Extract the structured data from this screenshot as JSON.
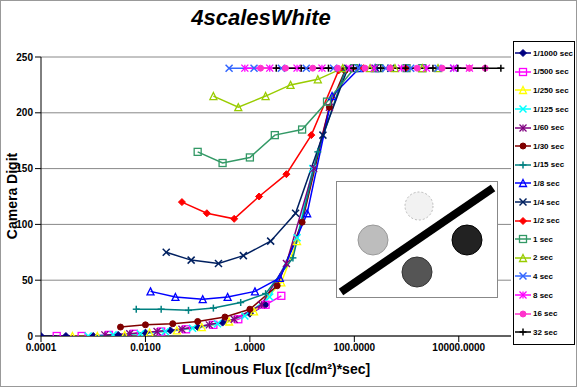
{
  "chart_data": {
    "type": "line",
    "title": "4scalesWhite",
    "x_label": "Luminous Flux [(cd/m²)*sec]",
    "y_label": "Camera Digit",
    "log": "x",
    "grid": true,
    "legend": "right",
    "xlim": [
      0.0001,
      100000
    ],
    "xticks": [
      0.0001,
      {
        "value": 0.01,
        "label": "0.0100"
      },
      {
        "value": 1,
        "label": "1.0000"
      },
      {
        "value": 100,
        "label": "100.0000"
      },
      {
        "value": 10000,
        "label": "10000.0000"
      }
    ],
    "ylim": [
      0,
      250
    ],
    "yticks": [
      0,
      50,
      100,
      150,
      200,
      250
    ],
    "series": [
      {
        "name": "1/1000 sec",
        "color": "#000080",
        "marker": "diamond",
        "x": [
          0.0001,
          0.0003,
          0.001,
          0.003,
          0.01,
          0.03,
          0.1,
          0.3,
          1,
          2
        ],
        "values": [
          0,
          0,
          0,
          1,
          3,
          5,
          8,
          12,
          20,
          28
        ]
      },
      {
        "name": "1/500 sec",
        "color": "#ff00ff",
        "marker": "square",
        "x": [
          0.0002,
          0.0006,
          0.002,
          0.006,
          0.02,
          0.06,
          0.2,
          0.6,
          2,
          4
        ],
        "values": [
          0,
          0,
          1,
          2,
          4,
          6,
          10,
          15,
          28,
          36
        ]
      },
      {
        "name": "1/250 sec",
        "color": "#ffff00",
        "marker": "triangle",
        "x": [
          0.0004,
          0.0012,
          0.004,
          0.012,
          0.04,
          0.12,
          0.4,
          1.2,
          4,
          8
        ],
        "values": [
          0,
          0,
          1,
          3,
          5,
          8,
          13,
          22,
          48,
          85
        ]
      },
      {
        "name": "1/125 sec",
        "color": "#00ffff",
        "marker": "x",
        "x": [
          0.0008,
          0.0024,
          0.008,
          0.024,
          0.08,
          0.24,
          0.8,
          2.4,
          8,
          16
        ],
        "values": [
          0,
          1,
          2,
          4,
          7,
          11,
          18,
          35,
          88,
          150
        ]
      },
      {
        "name": "1/60 sec",
        "color": "#800080",
        "marker": "star",
        "x": [
          0.00167,
          0.005,
          0.0167,
          0.05,
          0.167,
          0.5,
          1.67,
          5,
          16.7,
          33.3
        ],
        "values": [
          1,
          2,
          4,
          6,
          10,
          15,
          28,
          65,
          150,
          205
        ]
      },
      {
        "name": "1/30 sec",
        "color": "#800000",
        "marker": "circle",
        "x": [
          0.00333,
          0.01,
          0.0333,
          0.1,
          0.333,
          1,
          3.33,
          10,
          33.3,
          66.7
        ],
        "values": [
          8,
          10,
          11,
          13,
          17,
          24,
          45,
          102,
          205,
          238
        ]
      },
      {
        "name": "1/15 sec",
        "color": "#008080",
        "marker": "plus",
        "x": [
          0.00667,
          0.02,
          0.0667,
          0.2,
          0.667,
          2,
          6.67,
          20,
          66.7,
          133
        ],
        "values": [
          24,
          24,
          23,
          25,
          30,
          38,
          70,
          165,
          238,
          240
        ]
      },
      {
        "name": "1/8 sec",
        "color": "#0000ff",
        "marker": "triangle",
        "x": [
          0.0125,
          0.0375,
          0.125,
          0.375,
          1.25,
          3.75,
          12.5,
          37.5,
          125,
          250
        ],
        "values": [
          40,
          35,
          33,
          35,
          40,
          52,
          110,
          215,
          240,
          240
        ]
      },
      {
        "name": "1/4 sec",
        "color": "#002060",
        "marker": "x",
        "x": [
          0.025,
          0.075,
          0.25,
          0.75,
          2.5,
          7.5,
          25,
          75,
          250,
          500
        ],
        "values": [
          75,
          68,
          65,
          72,
          85,
          110,
          180,
          240,
          240,
          240
        ]
      },
      {
        "name": "1/2 sec",
        "color": "#ff0000",
        "marker": "diamond",
        "x": [
          0.05,
          0.15,
          0.5,
          1.5,
          5,
          15,
          50,
          150,
          500,
          1000
        ],
        "values": [
          120,
          110,
          105,
          125,
          145,
          180,
          238,
          240,
          240,
          240
        ]
      },
      {
        "name": "1 sec",
        "color": "#339966",
        "marker": "square",
        "x": [
          0.1,
          0.3,
          1,
          3,
          10,
          30,
          100,
          300,
          1000,
          2000
        ],
        "values": [
          165,
          155,
          160,
          180,
          185,
          210,
          240,
          240,
          240,
          240
        ]
      },
      {
        "name": "2 sec",
        "color": "#99cc00",
        "marker": "triangle",
        "x": [
          0.2,
          0.6,
          2,
          6,
          20,
          60,
          200,
          600,
          2000,
          4000
        ],
        "values": [
          215,
          205,
          215,
          225,
          230,
          240,
          240,
          240,
          240,
          240
        ]
      },
      {
        "name": "4 sec",
        "color": "#3366ff",
        "marker": "x",
        "x": [
          0.4,
          1.2,
          4,
          12,
          40,
          120,
          400,
          1200,
          4000,
          8000
        ],
        "values": [
          240,
          240,
          240,
          240,
          240,
          240,
          240,
          240,
          240,
          240
        ]
      },
      {
        "name": "8 sec",
        "color": "#ff00ff",
        "marker": "star",
        "x": [
          0.8,
          2.4,
          8,
          24,
          80,
          240,
          800,
          2400,
          8000,
          16000
        ],
        "values": [
          240,
          240,
          240,
          240,
          240,
          240,
          240,
          240,
          240,
          240
        ]
      },
      {
        "name": "16 sec",
        "color": "#ff33cc",
        "marker": "circle",
        "x": [
          1.6,
          4.8,
          16,
          48,
          160,
          480,
          1600,
          4800,
          16000,
          32000
        ],
        "values": [
          240,
          240,
          240,
          240,
          240,
          240,
          240,
          240,
          240,
          240
        ]
      },
      {
        "name": "32 sec",
        "color": "#000000",
        "marker": "plus",
        "x": [
          3.2,
          9.6,
          32,
          96,
          320,
          960,
          3200,
          9600,
          32000,
          64000
        ],
        "values": [
          240,
          240,
          240,
          240,
          240,
          240,
          240,
          240,
          240,
          240
        ]
      }
    ]
  }
}
